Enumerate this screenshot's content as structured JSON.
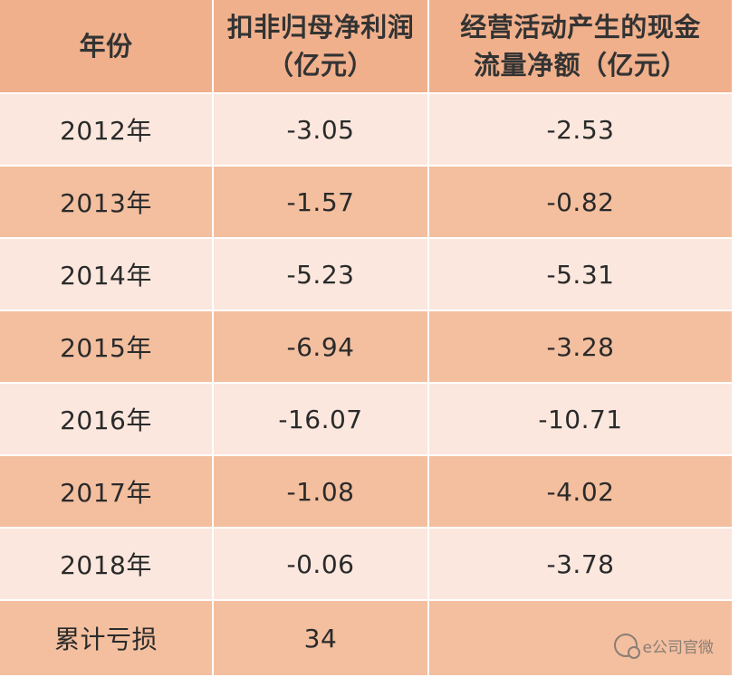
{
  "table": {
    "headers": [
      [
        "年份"
      ],
      [
        "扣非归母净利润",
        "（亿元）"
      ],
      [
        "经营活动产生的现金",
        "流量净额（亿元）"
      ]
    ],
    "rows": [
      {
        "year": "2012年",
        "profit": "-3.05",
        "cash": "-2.53"
      },
      {
        "year": "2013年",
        "profit": "-1.57",
        "cash": "-0.82"
      },
      {
        "year": "2014年",
        "profit": "-5.23",
        "cash": "-5.31"
      },
      {
        "year": "2015年",
        "profit": "-6.94",
        "cash": "-3.28"
      },
      {
        "year": "2016年",
        "profit": "-16.07",
        "cash": "-10.71"
      },
      {
        "year": "2017年",
        "profit": "-1.08",
        "cash": "-4.02"
      },
      {
        "year": "2018年",
        "profit": "-0.06",
        "cash": "-3.78"
      }
    ],
    "total": {
      "label": "累计亏损",
      "profit": "34",
      "cash": ""
    }
  },
  "watermark": {
    "text": "e公司官微"
  },
  "colors": {
    "header": "#f0b08c",
    "row_light": "#fbe7dd",
    "row_dark": "#f3bf9f"
  }
}
